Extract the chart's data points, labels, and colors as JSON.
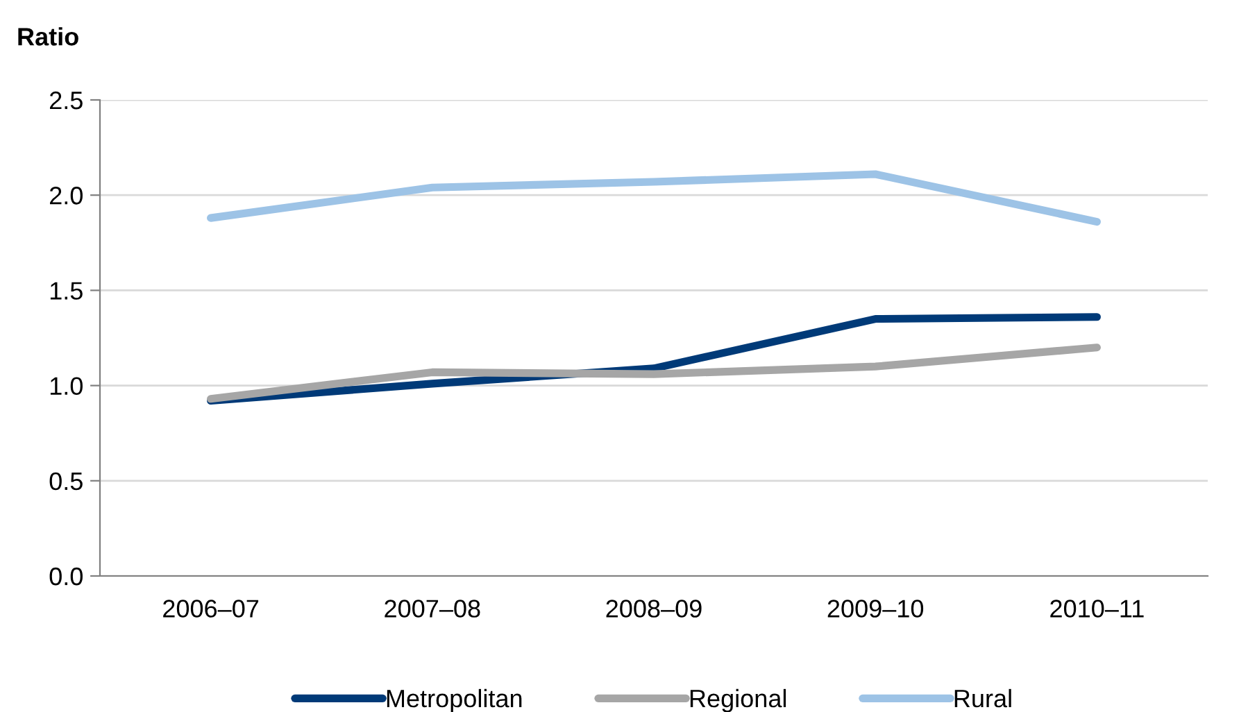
{
  "chart_data": {
    "type": "line",
    "ylabel": "Ratio",
    "categories": [
      "2006–07",
      "2007–08",
      "2008–09",
      "2009–10",
      "2010–11"
    ],
    "series": [
      {
        "name": "Metropolitan",
        "color": "#003a78",
        "values": [
          0.92,
          1.01,
          1.09,
          1.35,
          1.36
        ]
      },
      {
        "name": "Regional",
        "color": "#a6a6a6",
        "values": [
          0.93,
          1.07,
          1.06,
          1.1,
          1.2
        ]
      },
      {
        "name": "Rural",
        "color": "#9dc3e6",
        "values": [
          1.88,
          2.04,
          2.07,
          2.11,
          1.86
        ]
      }
    ],
    "ylim": [
      0,
      2.5
    ],
    "yticks": [
      {
        "value": 0,
        "label": "0.0"
      },
      {
        "value": 0.5,
        "label": "0.5"
      },
      {
        "value": 1,
        "label": "1.0"
      },
      {
        "value": 1.5,
        "label": "1.5"
      },
      {
        "value": 2,
        "label": "2.0"
      },
      {
        "value": 2.5,
        "label": "2.5"
      }
    ],
    "grid": "y",
    "legend": "bottom"
  }
}
